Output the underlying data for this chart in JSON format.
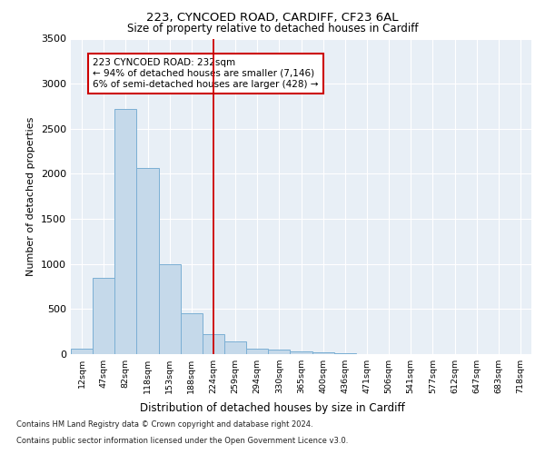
{
  "title1": "223, CYNCOED ROAD, CARDIFF, CF23 6AL",
  "title2": "Size of property relative to detached houses in Cardiff",
  "xlabel": "Distribution of detached houses by size in Cardiff",
  "ylabel": "Number of detached properties",
  "bar_labels": [
    "12sqm",
    "47sqm",
    "82sqm",
    "118sqm",
    "153sqm",
    "188sqm",
    "224sqm",
    "259sqm",
    "294sqm",
    "330sqm",
    "365sqm",
    "400sqm",
    "436sqm",
    "471sqm",
    "506sqm",
    "541sqm",
    "577sqm",
    "612sqm",
    "647sqm",
    "683sqm",
    "718sqm"
  ],
  "bar_values": [
    60,
    850,
    2720,
    2060,
    1000,
    455,
    220,
    140,
    65,
    50,
    35,
    25,
    10,
    5,
    0,
    0,
    0,
    0,
    0,
    0,
    0
  ],
  "bar_color": "#c5d9ea",
  "bar_edgecolor": "#7bafd4",
  "ylim": [
    0,
    3500
  ],
  "yticks": [
    0,
    500,
    1000,
    1500,
    2000,
    2500,
    3000,
    3500
  ],
  "vline_x": 6.0,
  "vline_color": "#cc0000",
  "annotation_text": "223 CYNCOED ROAD: 232sqm\n← 94% of detached houses are smaller (7,146)\n6% of semi-detached houses are larger (428) →",
  "footer1": "Contains HM Land Registry data © Crown copyright and database right 2024.",
  "footer2": "Contains public sector information licensed under the Open Government Licence v3.0.",
  "plot_bg_color": "#e8eff6"
}
